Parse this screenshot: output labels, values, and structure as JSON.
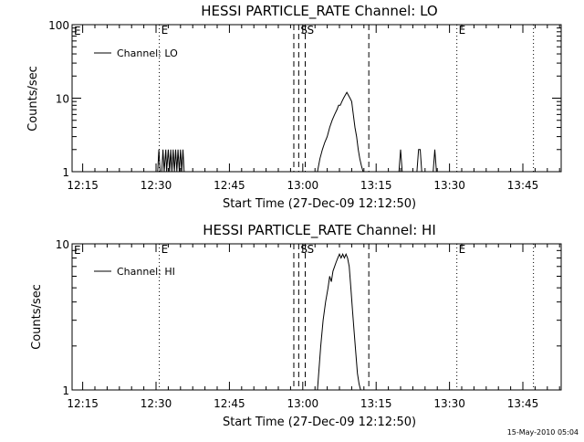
{
  "footer": {
    "timestamp": "15-May-2010 05:04"
  },
  "chart_data": [
    {
      "type": "line",
      "title": "HESSI PARTICLE_RATE Channel: LO",
      "xlabel": "Start Time (27-Dec-09 12:12:50)",
      "ylabel": "Counts/sec",
      "y_scale": "log",
      "ylim": [
        1,
        100
      ],
      "y_ticks": [
        {
          "value": 1,
          "label": "1"
        },
        {
          "value": 10,
          "label": "10"
        },
        {
          "value": 100,
          "label": "100"
        }
      ],
      "xlim": [
        "12:12:50",
        "13:52:50"
      ],
      "x_ticks": [
        {
          "value": "12:15",
          "label": "12:15"
        },
        {
          "value": "12:30",
          "label": "12:30"
        },
        {
          "value": "12:45",
          "label": "12:45"
        },
        {
          "value": "13:00",
          "label": "13:00"
        },
        {
          "value": "13:15",
          "label": "13:15"
        },
        {
          "value": "13:30",
          "label": "13:30"
        },
        {
          "value": "13:45",
          "label": "13:45"
        }
      ],
      "legend": {
        "label": "Channel: LO",
        "position": "top-left"
      },
      "markers": [
        {
          "time": "12:30:40",
          "label": "E",
          "style": "dotted"
        },
        {
          "time": "12:58:10",
          "label": "",
          "style": "dashed"
        },
        {
          "time": "12:59:10",
          "label": "S",
          "style": "dashed"
        },
        {
          "time": "13:00:30",
          "label": "S",
          "style": "dashed"
        },
        {
          "time": "13:13:30",
          "label": "",
          "style": "dashed"
        },
        {
          "time": "13:31:30",
          "label": "E",
          "style": "dotted"
        },
        {
          "time": "13:47:10",
          "label": "",
          "style": "dotted"
        }
      ],
      "series": [
        {
          "name": "Channel: LO",
          "x": [
            "12:30:20",
            "12:30:35",
            "12:30:50",
            "12:31:10",
            "12:31:25",
            "12:31:40",
            "12:32:00",
            "12:32:10",
            "12:32:30",
            "12:32:45",
            "12:33:00",
            "12:33:15",
            "12:33:30",
            "12:33:45",
            "12:34:00",
            "12:34:15",
            "12:34:30",
            "12:34:45",
            "12:35:00",
            "12:35:15",
            "12:35:30",
            "12:35:45",
            "13:03:00",
            "13:03:30",
            "13:04:00",
            "13:04:30",
            "13:05:00",
            "13:05:30",
            "13:06:00",
            "13:06:30",
            "13:07:00",
            "13:07:20",
            "13:07:40",
            "13:08:00",
            "13:08:20",
            "13:08:40",
            "13:09:00",
            "13:09:20",
            "13:09:40",
            "13:10:00",
            "13:10:20",
            "13:10:40",
            "13:11:00",
            "13:11:20",
            "13:11:40",
            "13:12:00",
            "13:12:20",
            "13:12:40",
            "13:19:40",
            "13:20:00",
            "13:20:20",
            "13:23:20",
            "13:23:40",
            "13:24:00",
            "13:24:20",
            "13:26:40",
            "13:27:00",
            "13:27:20"
          ],
          "y": [
            1,
            2,
            1,
            1,
            2,
            1,
            2,
            1,
            2,
            1,
            2,
            1,
            2,
            1,
            2,
            1,
            2,
            1,
            2,
            1,
            2,
            1,
            1,
            1.5,
            2,
            2.5,
            3,
            4,
            5,
            6,
            7,
            8,
            8,
            9,
            10,
            11,
            12,
            11,
            10,
            9,
            6,
            4,
            3,
            2,
            1.5,
            1.2,
            1,
            1,
            1,
            2,
            1,
            1,
            2,
            2,
            1,
            1,
            2,
            1
          ]
        }
      ]
    },
    {
      "type": "line",
      "title": "HESSI PARTICLE_RATE Channel: HI",
      "xlabel": "Start Time (27-Dec-09 12:12:50)",
      "ylabel": "Counts/sec",
      "y_scale": "log",
      "ylim": [
        1,
        10
      ],
      "y_ticks": [
        {
          "value": 1,
          "label": "1"
        },
        {
          "value": 10,
          "label": "10"
        }
      ],
      "xlim": [
        "12:12:50",
        "13:52:50"
      ],
      "x_ticks": [
        {
          "value": "12:15",
          "label": "12:15"
        },
        {
          "value": "12:30",
          "label": "12:30"
        },
        {
          "value": "12:45",
          "label": "12:45"
        },
        {
          "value": "13:00",
          "label": "13:00"
        },
        {
          "value": "13:15",
          "label": "13:15"
        },
        {
          "value": "13:30",
          "label": "13:30"
        },
        {
          "value": "13:45",
          "label": "13:45"
        }
      ],
      "legend": {
        "label": "Channel: HI",
        "position": "top-left"
      },
      "markers": [
        {
          "time": "12:30:40",
          "label": "E",
          "style": "dotted"
        },
        {
          "time": "12:58:10",
          "label": "",
          "style": "dashed"
        },
        {
          "time": "12:59:10",
          "label": "S",
          "style": "dashed"
        },
        {
          "time": "13:00:30",
          "label": "S",
          "style": "dashed"
        },
        {
          "time": "13:13:30",
          "label": "",
          "style": "dashed"
        },
        {
          "time": "13:31:30",
          "label": "E",
          "style": "dotted"
        },
        {
          "time": "13:47:10",
          "label": "",
          "style": "dotted"
        }
      ],
      "series": [
        {
          "name": "Channel: HI",
          "x": [
            "13:03:00",
            "13:03:40",
            "13:04:10",
            "13:04:40",
            "13:05:10",
            "13:05:30",
            "13:05:50",
            "13:06:10",
            "13:06:30",
            "13:06:50",
            "13:07:10",
            "13:07:30",
            "13:07:50",
            "13:08:10",
            "13:08:30",
            "13:08:50",
            "13:09:10",
            "13:09:30",
            "13:09:50",
            "13:10:10",
            "13:10:30",
            "13:10:50",
            "13:11:10",
            "13:11:30",
            "13:11:50"
          ],
          "y": [
            1,
            2,
            3,
            4,
            5,
            6,
            5.5,
            6.5,
            7,
            7.5,
            8,
            8.5,
            8,
            8.5,
            8,
            8.5,
            8,
            7,
            5,
            3.5,
            2.5,
            1.8,
            1.3,
            1.1,
            1
          ]
        }
      ]
    }
  ]
}
